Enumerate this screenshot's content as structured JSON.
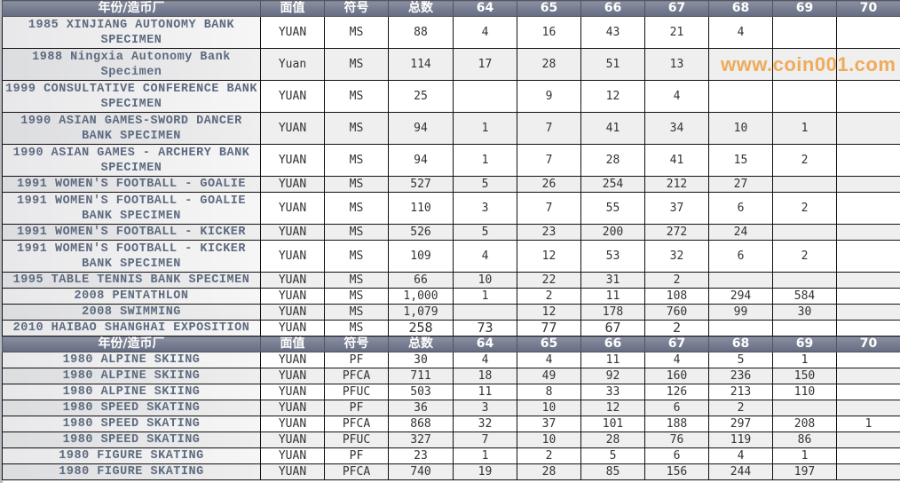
{
  "header": {
    "name": "年份/造币厂",
    "denomination": "面值",
    "symbol": "符号",
    "total": "总数",
    "years": [
      "64",
      "65",
      "66",
      "67",
      "68",
      "69",
      "70"
    ]
  },
  "sections": [
    {
      "rows": [
        {
          "name": "1985 XINJIANG AUTONOMY BANK SPECIMEN",
          "denom": "YUAN",
          "sym": "MS",
          "total": "88",
          "vals": [
            "4",
            "16",
            "43",
            "21",
            "4",
            "",
            ""
          ],
          "lines": 2
        },
        {
          "name": "1988 Ningxia Autonomy Bank Specimen",
          "denom": "Yuan",
          "sym": "MS",
          "total": "114",
          "vals": [
            "17",
            "28",
            "51",
            "13",
            "",
            "",
            ""
          ],
          "lines": 2
        },
        {
          "name": "1999 CONSULTATIVE CONFERENCE BANK SPECIMEN",
          "denom": "YUAN",
          "sym": "MS",
          "total": "25",
          "vals": [
            "",
            "9",
            "12",
            "4",
            "",
            "",
            ""
          ],
          "lines": 2
        },
        {
          "name": "1990 ASIAN GAMES-SWORD DANCER BANK SPECIMEN",
          "denom": "YUAN",
          "sym": "MS",
          "total": "94",
          "vals": [
            "1",
            "7",
            "41",
            "34",
            "10",
            "1",
            ""
          ],
          "lines": 2
        },
        {
          "name": "1990 ASIAN GAMES - ARCHERY BANK SPECIMEN",
          "denom": "YUAN",
          "sym": "MS",
          "total": "94",
          "vals": [
            "1",
            "7",
            "28",
            "41",
            "15",
            "2",
            ""
          ],
          "lines": 2
        },
        {
          "name": "1991 WOMEN'S FOOTBALL - GOALIE",
          "denom": "YUAN",
          "sym": "MS",
          "total": "527",
          "vals": [
            "5",
            "26",
            "254",
            "212",
            "27",
            "",
            ""
          ],
          "lines": 1
        },
        {
          "name": "1991 WOMEN'S FOOTBALL - GOALIE BANK SPECIMEN",
          "denom": "YUAN",
          "sym": "MS",
          "total": "110",
          "vals": [
            "3",
            "7",
            "55",
            "37",
            "6",
            "2",
            ""
          ],
          "lines": 2
        },
        {
          "name": "1991 WOMEN'S FOOTBALL - KICKER",
          "denom": "YUAN",
          "sym": "MS",
          "total": "526",
          "vals": [
            "5",
            "23",
            "200",
            "272",
            "24",
            "",
            ""
          ],
          "lines": 1
        },
        {
          "name": "1991 WOMEN'S FOOTBALL - KICKER BANK SPECIMEN",
          "denom": "YUAN",
          "sym": "MS",
          "total": "109",
          "vals": [
            "4",
            "12",
            "53",
            "32",
            "6",
            "2",
            ""
          ],
          "lines": 2
        },
        {
          "name": "1995 TABLE TENNIS BANK SPECIMEN",
          "denom": "YUAN",
          "sym": "MS",
          "total": "66",
          "vals": [
            "10",
            "22",
            "31",
            "2",
            "",
            "",
            ""
          ],
          "lines": 1
        },
        {
          "name": "2008 PENTATHLON",
          "denom": "YUAN",
          "sym": "MS",
          "total": "1,000",
          "vals": [
            "1",
            "2",
            "11",
            "108",
            "294",
            "584",
            ""
          ],
          "lines": 1
        },
        {
          "name": "2008 SWIMMING",
          "denom": "YUAN",
          "sym": "MS",
          "total": "1,079",
          "vals": [
            "",
            "12",
            "178",
            "760",
            "99",
            "30",
            ""
          ],
          "lines": 1
        },
        {
          "name": "2010 HAIBAO SHANGHAI EXPOSITION",
          "denom": "YUAN",
          "sym": "MS",
          "total": "258",
          "vals": [
            "73",
            "77",
            "67",
            "2",
            "",
            "",
            ""
          ],
          "lines": 1,
          "big": true
        }
      ]
    },
    {
      "rows": [
        {
          "name": "1980 ALPINE SKIING",
          "denom": "YUAN",
          "sym": "PF",
          "total": "30",
          "vals": [
            "4",
            "4",
            "11",
            "4",
            "5",
            "1",
            ""
          ],
          "lines": 1
        },
        {
          "name": "1980 ALPINE SKIING",
          "denom": "YUAN",
          "sym": "PFCA",
          "total": "711",
          "vals": [
            "18",
            "49",
            "92",
            "160",
            "236",
            "150",
            ""
          ],
          "lines": 1
        },
        {
          "name": "1980 ALPINE SKIING",
          "denom": "YUAN",
          "sym": "PFUC",
          "total": "503",
          "vals": [
            "11",
            "8",
            "33",
            "126",
            "213",
            "110",
            ""
          ],
          "lines": 1
        },
        {
          "name": "1980 SPEED SKATING",
          "denom": "YUAN",
          "sym": "PF",
          "total": "36",
          "vals": [
            "3",
            "10",
            "12",
            "6",
            "2",
            "",
            ""
          ],
          "lines": 1
        },
        {
          "name": "1980 SPEED SKATING",
          "denom": "YUAN",
          "sym": "PFCA",
          "total": "868",
          "vals": [
            "32",
            "37",
            "101",
            "188",
            "297",
            "208",
            "1"
          ],
          "lines": 1
        },
        {
          "name": "1980 SPEED SKATING",
          "denom": "YUAN",
          "sym": "PFUC",
          "total": "327",
          "vals": [
            "7",
            "10",
            "28",
            "76",
            "119",
            "86",
            ""
          ],
          "lines": 1
        },
        {
          "name": "1980 FIGURE SKATING",
          "denom": "YUAN",
          "sym": "PF",
          "total": "23",
          "vals": [
            "1",
            "2",
            "5",
            "6",
            "4",
            "1",
            ""
          ],
          "lines": 1
        },
        {
          "name": "1980 FIGURE SKATING",
          "denom": "YUAN",
          "sym": "PFCA",
          "total": "740",
          "vals": [
            "19",
            "28",
            "85",
            "156",
            "244",
            "197",
            ""
          ],
          "lines": 1
        }
      ]
    }
  ],
  "watermark": "www.coin001.com"
}
